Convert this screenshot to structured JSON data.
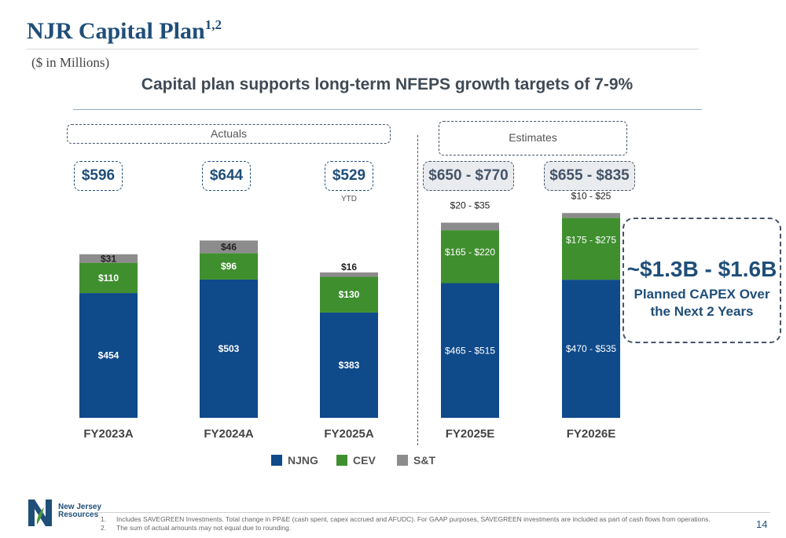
{
  "header": {
    "title": "NJR Capital Plan",
    "title_superscript": "1,2",
    "units": "($ in Millions)",
    "subtitle": "Capital plan supports long-term NFEPS growth targets of 7-9%"
  },
  "groups": {
    "actuals_label": "Actuals",
    "estimates_label": "Estimates",
    "ytd_label": "YTD"
  },
  "totals": [
    "$596",
    "$644",
    "$529",
    "$650 - $770",
    "$655 - $835"
  ],
  "callout": {
    "range": "~$1.3B - $1.6B",
    "line1": "Planned CAPEX Over",
    "line2": "the Next 2 Years"
  },
  "footnotes": [
    {
      "num": "1.",
      "text": "Includes SAVEGREEN Investments. Total change in PP&E (cash spent, capex accrued and AFUDC). For GAAP purposes, SAVEGREEN investments are included as part of cash flows from operations."
    },
    {
      "num": "2.",
      "text": "The sum of actual amounts may not equal due to rounding."
    }
  ],
  "logo": {
    "line1": "New Jersey",
    "line2": "Resources"
  },
  "page_number": "14",
  "colors": {
    "njng": "#0f4a8a",
    "cev": "#3f8f2f",
    "st": "#8c8c8c",
    "accent": "#1f4e79"
  },
  "chart_data": {
    "type": "bar",
    "stacked": true,
    "categories": [
      "FY2023A",
      "FY2024A",
      "FY2025A",
      "FY2025E",
      "FY2026E"
    ],
    "series": [
      {
        "name": "NJNG",
        "values": [
          454,
          503,
          383,
          490,
          502.5
        ],
        "labels": [
          "$454",
          "$503",
          "$383",
          "$465 - $515",
          "$470 - $535"
        ]
      },
      {
        "name": "CEV",
        "values": [
          110,
          96,
          130,
          192.5,
          225
        ],
        "labels": [
          "$110",
          "$96",
          "$130",
          "$165 - $220",
          "$175 - $275"
        ]
      },
      {
        "name": "S&T",
        "values": [
          31,
          46,
          16,
          27.5,
          17.5
        ],
        "labels": [
          "$31",
          "$46",
          "$16",
          "$20 - $35",
          "$10 - $25"
        ]
      }
    ],
    "ylim": [
      0,
      800
    ],
    "legend": "bottom"
  }
}
